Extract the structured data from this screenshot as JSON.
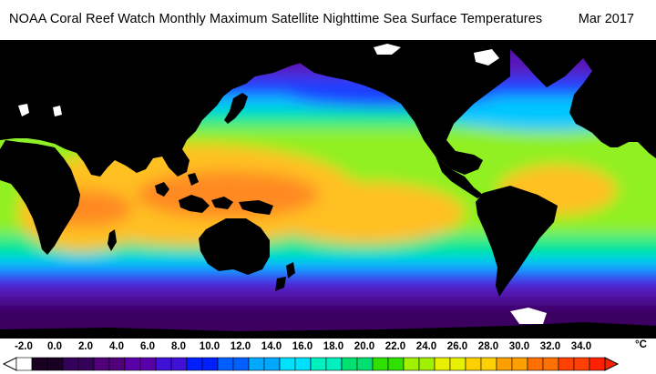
{
  "header": {
    "title": "NOAA Coral Reef Watch Monthly Maximum Satellite Nighttime Sea Surface Temperatures",
    "date": "Mar 2017"
  },
  "legend": {
    "unit": "°C",
    "ticks": [
      "-2.0",
      "0.0",
      "2.0",
      "4.0",
      "6.0",
      "8.0",
      "10.0",
      "12.0",
      "14.0",
      "16.0",
      "18.0",
      "20.0",
      "22.0",
      "24.0",
      "26.0",
      "28.0",
      "30.0",
      "32.0",
      "34.0"
    ],
    "colors": [
      "#ffffff",
      "#1a0022",
      "#33005a",
      "#500078",
      "#5a00a8",
      "#4010d8",
      "#0020ff",
      "#0060ff",
      "#00a8ff",
      "#00e0ff",
      "#00f0c0",
      "#00e070",
      "#30e000",
      "#a0f000",
      "#e8f000",
      "#ffd000",
      "#ffa000",
      "#ff7000",
      "#ff4000",
      "#ff2000"
    ]
  },
  "map": {
    "colors": {
      "land": "#000000",
      "ice": "#ffffff",
      "polar": "#3a0060",
      "cold": "#5a18b8",
      "cool": "#1a40ff",
      "mild": "#00c8ff",
      "temperate": "#00e890",
      "warm": "#90f020",
      "hot": "#ffc020",
      "tropical": "#ff8a20"
    }
  }
}
